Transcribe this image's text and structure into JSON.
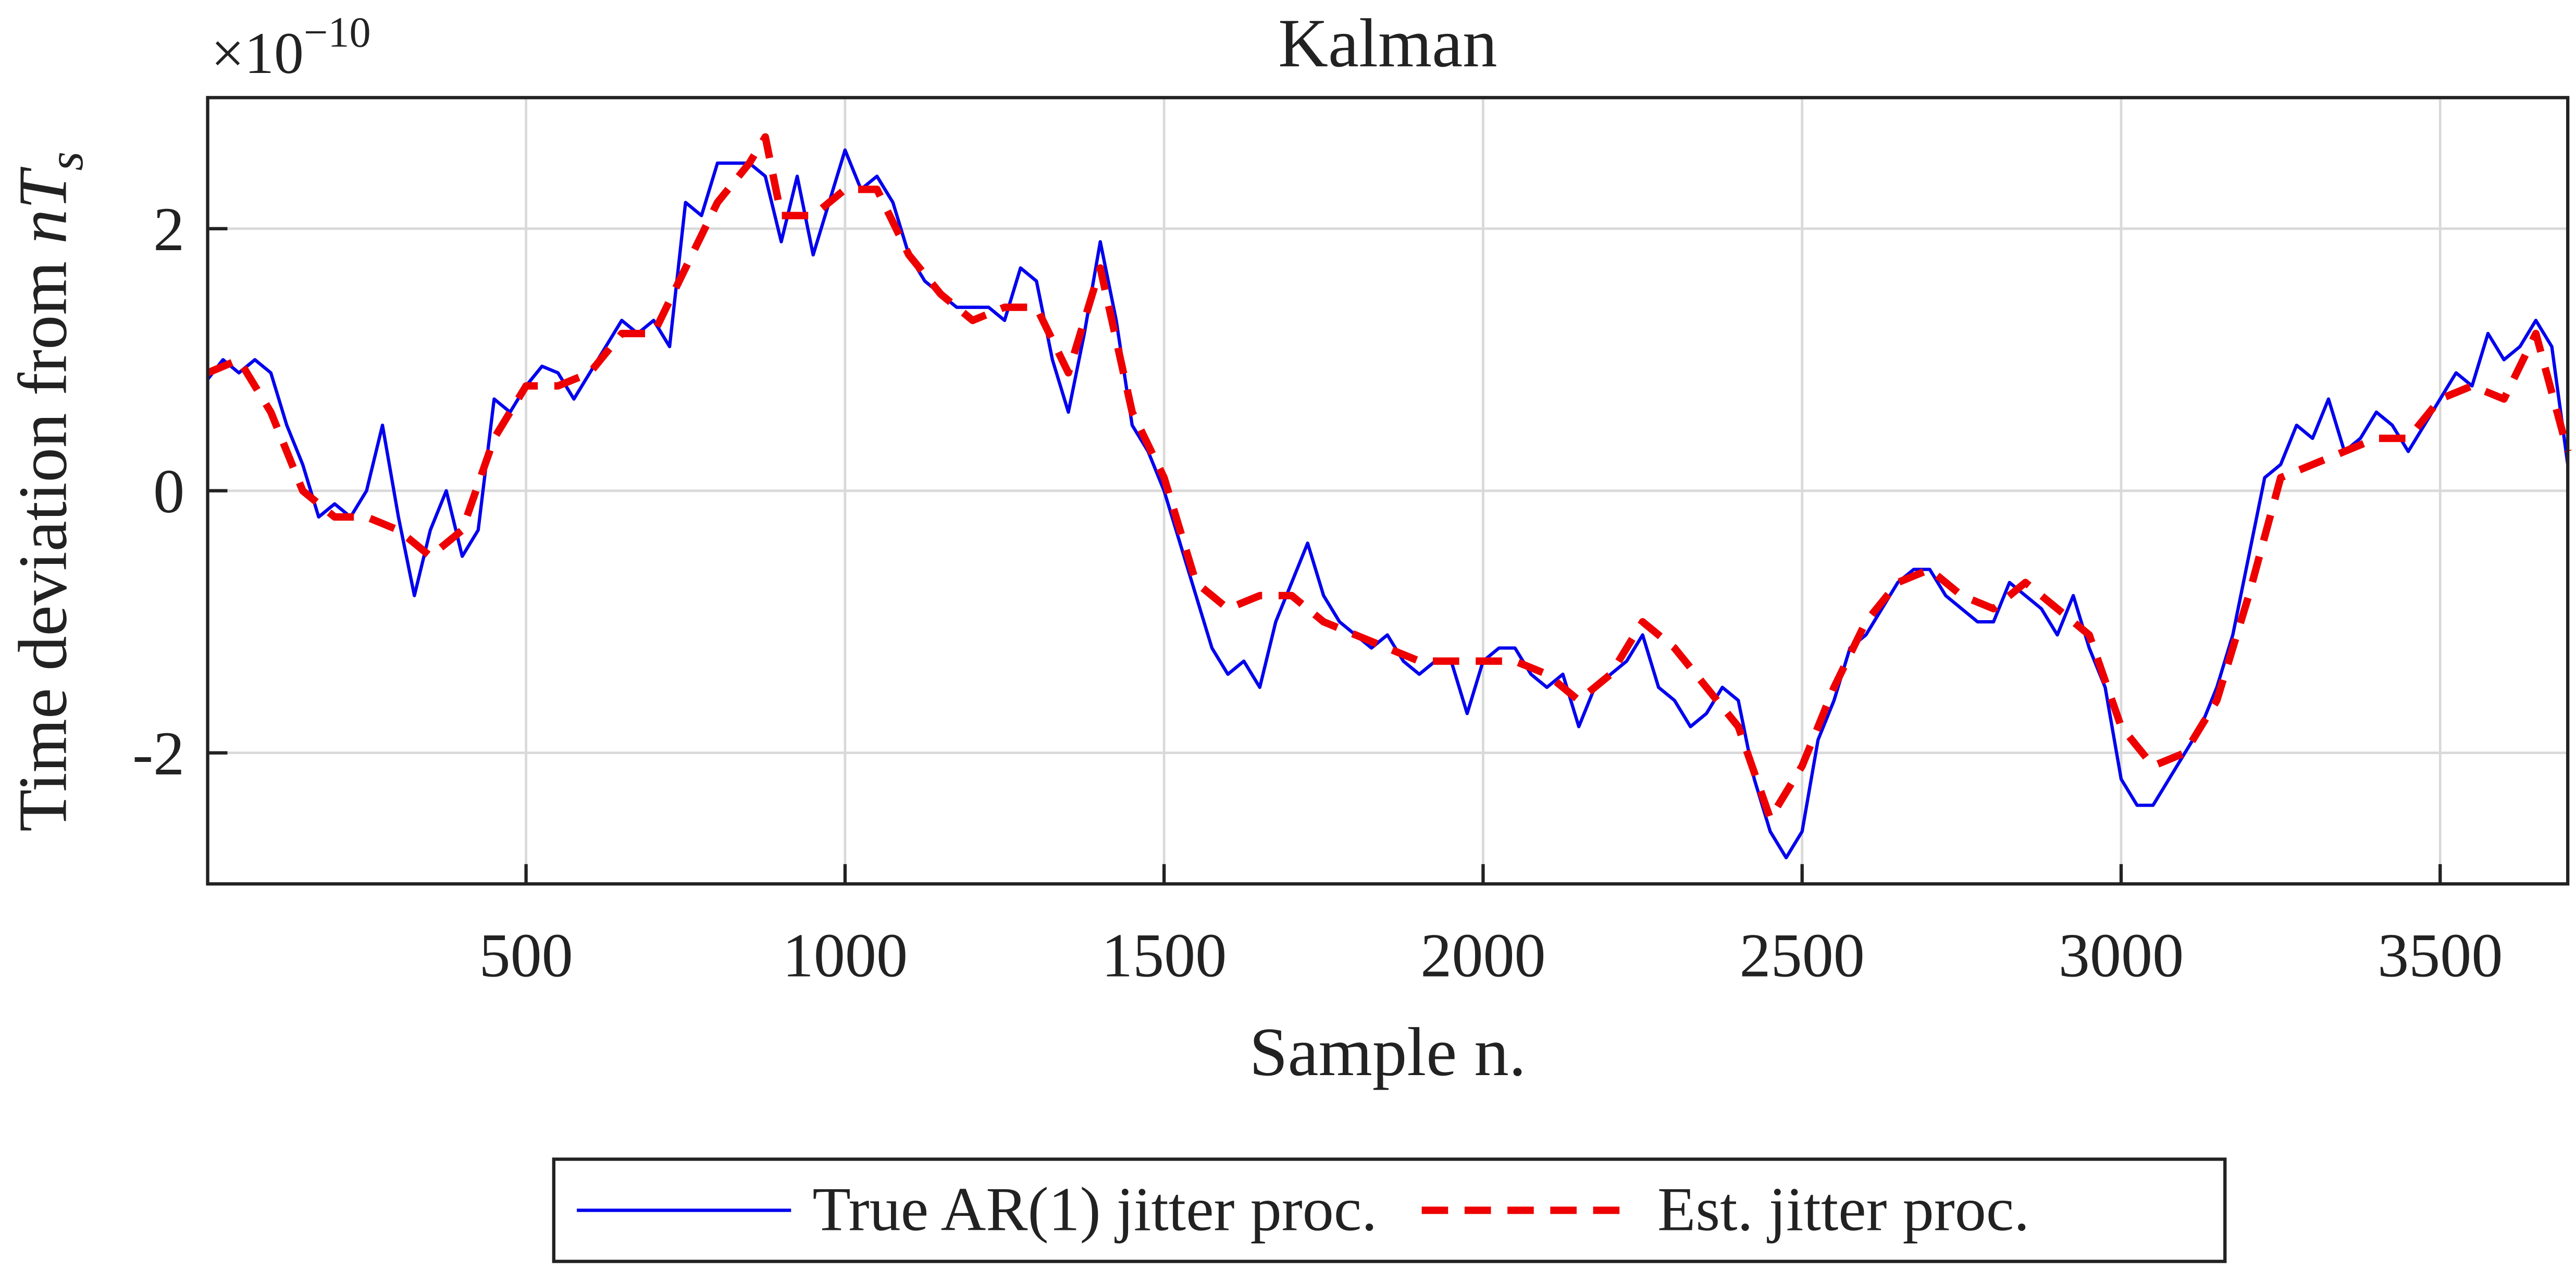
{
  "chart_data": {
    "type": "line",
    "title": "Kalman",
    "xlabel": "Sample n.",
    "ylabel": {
      "text": "Time deviation from ",
      "math": "nT",
      "sub": "s"
    },
    "y_multiplier": {
      "base": "×10",
      "exponent": "−10"
    },
    "xlim": [
      1,
      3700
    ],
    "ylim": [
      -3,
      3
    ],
    "xticks": [
      500,
      1000,
      1500,
      2000,
      2500,
      3000,
      3500
    ],
    "yticks": [
      -2,
      0,
      2
    ],
    "grid": true,
    "legend": "bottom-outside",
    "series": [
      {
        "name": "True AR(1) jitter proc.",
        "color": "#0000ee",
        "style": "solid",
        "x": [
          1,
          25,
          50,
          75,
          100,
          125,
          150,
          175,
          200,
          225,
          250,
          275,
          300,
          325,
          350,
          375,
          400,
          425,
          450,
          475,
          500,
          525,
          550,
          575,
          600,
          625,
          650,
          675,
          700,
          725,
          750,
          775,
          800,
          825,
          850,
          875,
          900,
          925,
          950,
          975,
          1000,
          1025,
          1050,
          1075,
          1100,
          1125,
          1150,
          1175,
          1200,
          1225,
          1250,
          1275,
          1300,
          1325,
          1350,
          1375,
          1400,
          1425,
          1450,
          1475,
          1500,
          1525,
          1550,
          1575,
          1600,
          1625,
          1650,
          1675,
          1700,
          1725,
          1750,
          1775,
          1800,
          1825,
          1850,
          1875,
          1900,
          1925,
          1950,
          1975,
          2000,
          2025,
          2050,
          2075,
          2100,
          2125,
          2150,
          2175,
          2200,
          2225,
          2250,
          2275,
          2300,
          2325,
          2350,
          2375,
          2400,
          2425,
          2450,
          2475,
          2500,
          2525,
          2550,
          2575,
          2600,
          2625,
          2650,
          2675,
          2700,
          2725,
          2750,
          2775,
          2800,
          2825,
          2850,
          2875,
          2900,
          2925,
          2950,
          2975,
          3000,
          3025,
          3050,
          3075,
          3100,
          3125,
          3150,
          3175,
          3200,
          3225,
          3250,
          3275,
          3300,
          3325,
          3350,
          3375,
          3400,
          3425,
          3450,
          3475,
          3500,
          3525,
          3550,
          3575,
          3600,
          3625,
          3650,
          3675,
          3700
        ],
        "values": [
          0.85,
          1.0,
          0.9,
          1.0,
          0.9,
          0.5,
          0.2,
          -0.2,
          -0.1,
          -0.2,
          0.0,
          0.5,
          -0.2,
          -0.8,
          -0.3,
          0.0,
          -0.5,
          -0.3,
          0.7,
          0.6,
          0.8,
          0.95,
          0.9,
          0.7,
          0.9,
          1.1,
          1.3,
          1.2,
          1.3,
          1.1,
          2.2,
          2.1,
          2.5,
          2.5,
          2.5,
          2.4,
          1.9,
          2.4,
          1.8,
          2.2,
          2.6,
          2.3,
          2.4,
          2.2,
          1.8,
          1.6,
          1.5,
          1.4,
          1.4,
          1.4,
          1.3,
          1.7,
          1.6,
          1.0,
          0.6,
          1.2,
          1.9,
          1.3,
          0.5,
          0.3,
          0.0,
          -0.4,
          -0.8,
          -1.2,
          -1.4,
          -1.3,
          -1.5,
          -1.0,
          -0.7,
          -0.4,
          -0.8,
          -1.0,
          -1.1,
          -1.2,
          -1.1,
          -1.3,
          -1.4,
          -1.3,
          -1.3,
          -1.7,
          -1.3,
          -1.2,
          -1.2,
          -1.4,
          -1.5,
          -1.4,
          -1.8,
          -1.5,
          -1.4,
          -1.3,
          -1.1,
          -1.5,
          -1.6,
          -1.8,
          -1.7,
          -1.5,
          -1.6,
          -2.2,
          -2.6,
          -2.8,
          -2.6,
          -1.9,
          -1.6,
          -1.2,
          -1.1,
          -0.9,
          -0.7,
          -0.6,
          -0.6,
          -0.8,
          -0.9,
          -1.0,
          -1.0,
          -0.7,
          -0.8,
          -0.9,
          -1.1,
          -0.8,
          -1.2,
          -1.5,
          -2.2,
          -2.4,
          -2.4,
          -2.2,
          -2.0,
          -1.8,
          -1.5,
          -1.1,
          -0.5,
          0.1,
          0.2,
          0.5,
          0.4,
          0.7,
          0.3,
          0.4,
          0.6,
          0.5,
          0.3,
          0.5,
          0.7,
          0.9,
          0.8,
          1.2,
          1.0,
          1.1,
          1.3,
          1.1,
          0.2
        ]
      },
      {
        "name": "Est. jitter proc.",
        "color": "#ee0000",
        "style": "dashed",
        "x": [
          1,
          50,
          100,
          150,
          200,
          250,
          300,
          350,
          400,
          450,
          500,
          550,
          600,
          650,
          700,
          750,
          800,
          850,
          875,
          900,
          950,
          1000,
          1050,
          1100,
          1150,
          1200,
          1250,
          1300,
          1350,
          1400,
          1450,
          1500,
          1550,
          1600,
          1650,
          1700,
          1750,
          1800,
          1850,
          1900,
          1950,
          2000,
          2050,
          2100,
          2150,
          2200,
          2250,
          2300,
          2350,
          2400,
          2450,
          2500,
          2550,
          2600,
          2650,
          2700,
          2750,
          2800,
          2850,
          2900,
          2950,
          3000,
          3050,
          3100,
          3150,
          3200,
          3250,
          3300,
          3350,
          3400,
          3450,
          3500,
          3550,
          3600,
          3650,
          3700
        ],
        "values": [
          0.9,
          1.0,
          0.6,
          0.0,
          -0.2,
          -0.2,
          -0.3,
          -0.5,
          -0.3,
          0.4,
          0.8,
          0.8,
          0.9,
          1.2,
          1.2,
          1.7,
          2.2,
          2.5,
          2.7,
          2.1,
          2.1,
          2.3,
          2.3,
          1.8,
          1.5,
          1.3,
          1.4,
          1.4,
          0.9,
          1.7,
          0.6,
          0.1,
          -0.7,
          -0.9,
          -0.8,
          -0.8,
          -1.0,
          -1.1,
          -1.2,
          -1.3,
          -1.3,
          -1.3,
          -1.3,
          -1.4,
          -1.6,
          -1.4,
          -1.0,
          -1.2,
          -1.5,
          -1.8,
          -2.5,
          -2.1,
          -1.5,
          -1.0,
          -0.7,
          -0.6,
          -0.8,
          -0.9,
          -0.7,
          -0.9,
          -1.1,
          -1.8,
          -2.1,
          -2.0,
          -1.6,
          -0.8,
          0.1,
          0.2,
          0.3,
          0.4,
          0.4,
          0.7,
          0.8,
          0.7,
          1.2,
          0.3
        ]
      }
    ]
  }
}
